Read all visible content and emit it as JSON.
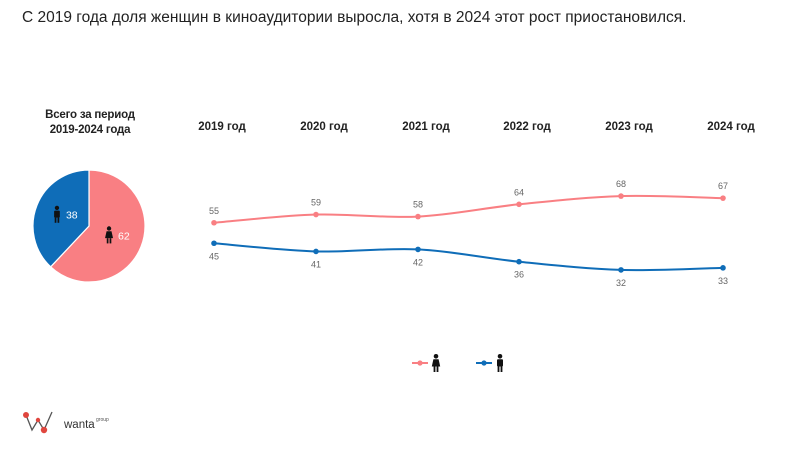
{
  "title": "С 2019 года доля женщин в киноаудитории выросла, хотя в 2024 этот рост приостановился.",
  "colors": {
    "women": "#F97F83",
    "men": "#0F6DB8",
    "icon": "#111111"
  },
  "legend_icons": [
    "female-figure-icon",
    "male-figure-icon"
  ],
  "logo": {
    "text": "wanta",
    "sup": "group"
  },
  "chart_data": [
    {
      "type": "pie",
      "title_lines": [
        "Всего за период",
        "2019-2024 года"
      ],
      "slices": [
        {
          "name": "women",
          "icon": "female-figure-icon",
          "value": 62,
          "label": "62",
          "color": "#F97F83"
        },
        {
          "name": "men",
          "icon": "male-figure-icon",
          "value": 38,
          "label": "38",
          "color": "#0F6DB8"
        }
      ]
    },
    {
      "type": "line",
      "categories": [
        "2019 год",
        "2020 год",
        "2021 год",
        "2022 год",
        "2023 год",
        "2024 год"
      ],
      "series": [
        {
          "key": "women",
          "icon": "female-figure-icon",
          "color": "#F97F83",
          "values": [
            55,
            59,
            58,
            64,
            68,
            67
          ]
        },
        {
          "key": "men",
          "icon": "male-figure-icon",
          "color": "#0F6DB8",
          "values": [
            45,
            41,
            42,
            36,
            32,
            33
          ]
        }
      ],
      "grid": false,
      "legend_position": "bottom-center"
    }
  ]
}
